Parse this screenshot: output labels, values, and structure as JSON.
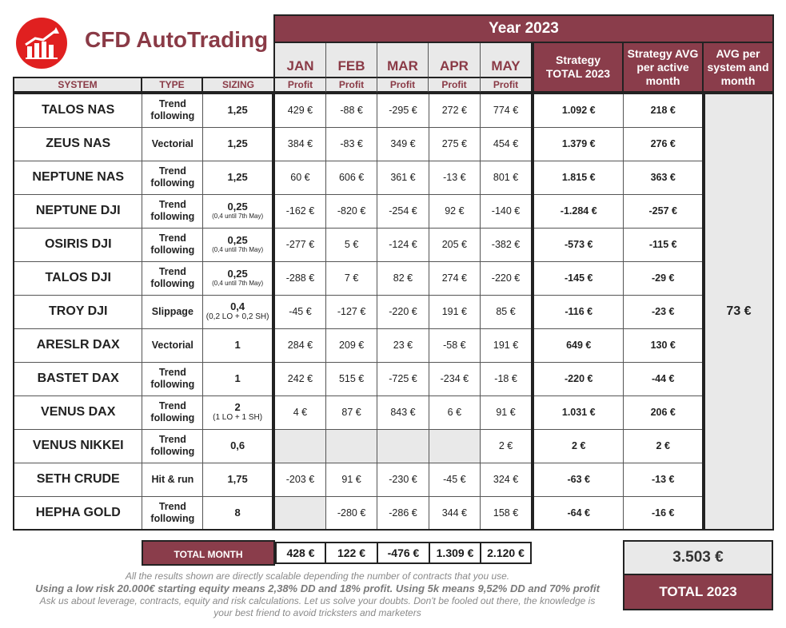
{
  "brand": {
    "title": "CFD AutoTrading",
    "logo_icon": "rising-bar-chart-icon",
    "accent": "#8a3d4b"
  },
  "header": {
    "year": "Year 2023",
    "months": [
      "JAN",
      "FEB",
      "MAR",
      "APR",
      "MAY"
    ],
    "profit_label": "Profit",
    "system_label": "SYSTEM",
    "type_label": "TYPE",
    "sizing_label": "SIZING",
    "strategy_total": "Strategy TOTAL 2023",
    "strategy_avg": "Strategy AVG per active month",
    "avg_per_system": "AVG per system and month"
  },
  "rows": [
    {
      "name": "TALOS NAS",
      "type": "Trend following",
      "sizing": "1,25",
      "note": "",
      "months": [
        "429 €",
        "-88 €",
        "-295 €",
        "272 €",
        "774 €"
      ],
      "total": "1.092 €",
      "avg": "218 €"
    },
    {
      "name": "ZEUS NAS",
      "type": "Vectorial",
      "sizing": "1,25",
      "note": "",
      "months": [
        "384 €",
        "-83 €",
        "349 €",
        "275 €",
        "454 €"
      ],
      "total": "1.379 €",
      "avg": "276 €"
    },
    {
      "name": "NEPTUNE NAS",
      "type": "Trend following",
      "sizing": "1,25",
      "note": "",
      "months": [
        "60 €",
        "606 €",
        "361 €",
        "-13 €",
        "801 €"
      ],
      "total": "1.815 €",
      "avg": "363 €"
    },
    {
      "name": "NEPTUNE DJI",
      "type": "Trend following",
      "sizing": "0,25",
      "note": "(0,4 until 7th May)",
      "months": [
        "-162 €",
        "-820 €",
        "-254 €",
        "92 €",
        "-140 €"
      ],
      "total": "-1.284 €",
      "avg": "-257 €"
    },
    {
      "name": "OSIRIS DJI",
      "type": "Trend following",
      "sizing": "0,25",
      "note": "(0,4 until 7th May)",
      "months": [
        "-277 €",
        "5 €",
        "-124 €",
        "205 €",
        "-382 €"
      ],
      "total": "-573 €",
      "avg": "-115 €"
    },
    {
      "name": "TALOS DJI",
      "type": "Trend following",
      "sizing": "0,25",
      "note": "(0,4 until 7th May)",
      "months": [
        "-288 €",
        "7 €",
        "82 €",
        "274 €",
        "-220 €"
      ],
      "total": "-145 €",
      "avg": "-29 €"
    },
    {
      "name": "TROY DJI",
      "type": "Slippage",
      "sizing": "0,4",
      "note2": "(0,2 LO + 0,2 SH)",
      "months": [
        "-45 €",
        "-127 €",
        "-220 €",
        "191 €",
        "85 €"
      ],
      "total": "-116 €",
      "avg": "-23 €"
    },
    {
      "name": "ARESLR DAX",
      "type": "Vectorial",
      "sizing": "1",
      "note": "",
      "months": [
        "284 €",
        "209 €",
        "23 €",
        "-58 €",
        "191 €"
      ],
      "total": "649 €",
      "avg": "130 €"
    },
    {
      "name": "BASTET DAX",
      "type": "Trend following",
      "sizing": "1",
      "note": "",
      "months": [
        "242 €",
        "515 €",
        "-725 €",
        "-234 €",
        "-18 €"
      ],
      "total": "-220 €",
      "avg": "-44 €"
    },
    {
      "name": "VENUS DAX",
      "type": "Trend following",
      "sizing": "2",
      "note2": "(1 LO + 1 SH)",
      "months": [
        "4 €",
        "87 €",
        "843 €",
        "6 €",
        "91 €"
      ],
      "total": "1.031 €",
      "avg": "206 €"
    },
    {
      "name": "VENUS NIKKEI",
      "type": "Trend following",
      "sizing": "0,6",
      "note": "",
      "months": [
        "",
        "",
        "",
        "",
        "2 €"
      ],
      "total": "2 €",
      "avg": "2 €"
    },
    {
      "name": "SETH CRUDE",
      "type": "Hit & run",
      "sizing": "1,75",
      "note": "",
      "months": [
        "-203 €",
        "91 €",
        "-230 €",
        "-45 €",
        "324 €"
      ],
      "total": "-63 €",
      "avg": "-13 €"
    },
    {
      "name": "HEPHA GOLD",
      "type": "Trend following",
      "sizing": "8",
      "note": "",
      "months": [
        "",
        "-280 €",
        "-286 €",
        "344 €",
        "158 €"
      ],
      "total": "-64 €",
      "avg": "-16 €"
    }
  ],
  "avg_value": "73 €",
  "totals": {
    "label": "TOTAL MONTH",
    "values": [
      "428 €",
      "122 €",
      "-476 €",
      "1.309 €",
      "2.120 €"
    ]
  },
  "grand": {
    "value": "3.503 €",
    "label": "TOTAL 2023"
  },
  "notes": {
    "line1": "All the results shown are directly scalable depending the number of contracts that you use.",
    "line2": "Using a low risk 20.000€ starting equity means 2,38% DD and 18% profit.  Using 5k means 9,52% DD and 70% profit",
    "line3": "Ask us about leverage, contracts, equity and risk calculations. Let us solve your doubts.  Don't be fooled out there, the knowledge is",
    "line4": "your best friend to avoid tricksters and marketers"
  }
}
